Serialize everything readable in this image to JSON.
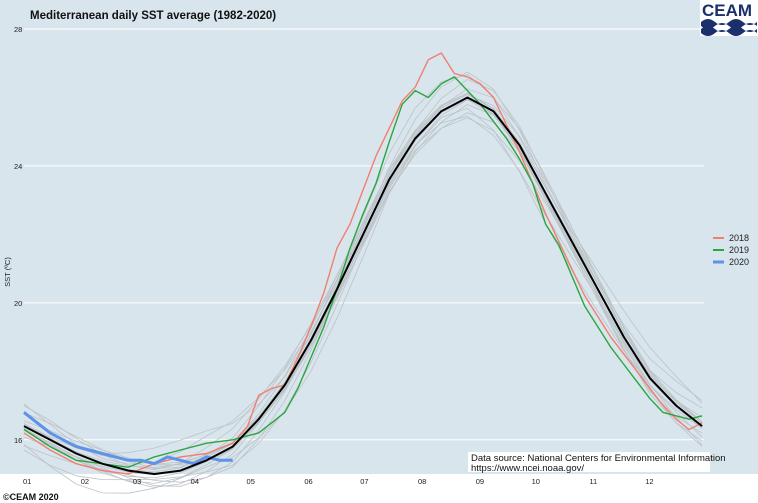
{
  "chart_data": {
    "type": "line",
    "title": "Mediterranean daily SST average (1982-2020)",
    "xlabel": "",
    "ylabel": "SST (ºC)",
    "xlim": [
      0,
      365
    ],
    "ylim": [
      15,
      28
    ],
    "month_ticks": [
      "01",
      "02",
      "03",
      "04",
      "05",
      "06",
      "07",
      "08",
      "09",
      "10",
      "11",
      "12"
    ],
    "y_ticks": [
      16,
      20,
      24,
      28
    ],
    "grid": true,
    "legend_position": "right",
    "climatology_color": "#000000",
    "history_color": "#bcc3c8",
    "series": [
      {
        "name": "2018",
        "color": "#f07f70",
        "x": [
          0,
          14,
          28,
          42,
          56,
          70,
          84,
          98,
          112,
          120,
          126,
          133,
          140,
          147,
          154,
          161,
          168,
          175,
          182,
          189,
          196,
          203,
          210,
          217,
          224,
          231,
          238,
          245,
          252,
          259,
          266,
          273,
          280,
          287,
          294,
          301,
          308,
          315,
          322,
          329,
          336,
          343,
          350,
          357,
          364
        ],
        "values": [
          16.2,
          15.7,
          15.3,
          15.1,
          15.0,
          15.3,
          15.5,
          15.6,
          15.9,
          16.4,
          17.3,
          17.5,
          17.6,
          18.4,
          19.3,
          20.3,
          21.6,
          22.3,
          23.3,
          24.3,
          25.1,
          25.9,
          26.3,
          27.1,
          27.3,
          26.7,
          26.6,
          26.4,
          26.0,
          25.2,
          24.4,
          23.5,
          22.6,
          21.8,
          21.0,
          20.2,
          19.6,
          19.0,
          18.5,
          18.0,
          17.5,
          17.0,
          16.6,
          16.3,
          16.5
        ]
      },
      {
        "name": "2019",
        "color": "#2aa640",
        "x": [
          0,
          14,
          28,
          42,
          56,
          70,
          84,
          98,
          112,
          126,
          140,
          147,
          154,
          161,
          168,
          175,
          182,
          189,
          196,
          203,
          210,
          217,
          224,
          231,
          238,
          245,
          252,
          259,
          266,
          273,
          280,
          287,
          294,
          301,
          308,
          315,
          322,
          329,
          336,
          343,
          350,
          357,
          364
        ],
        "values": [
          16.3,
          15.8,
          15.4,
          15.3,
          15.2,
          15.5,
          15.7,
          15.9,
          16.0,
          16.2,
          16.8,
          17.5,
          18.4,
          19.3,
          20.4,
          21.6,
          22.6,
          23.5,
          24.7,
          25.8,
          26.2,
          26.0,
          26.4,
          26.6,
          26.2,
          25.8,
          25.3,
          24.8,
          24.2,
          23.5,
          22.3,
          21.7,
          20.8,
          19.9,
          19.3,
          18.7,
          18.2,
          17.7,
          17.2,
          16.8,
          16.7,
          16.6,
          16.7
        ]
      },
      {
        "name": "2020",
        "color": "#5d93e8",
        "x": [
          0,
          7,
          14,
          21,
          28,
          35,
          42,
          49,
          56,
          63,
          70,
          77,
          84,
          91,
          98,
          105,
          112
        ],
        "values": [
          16.8,
          16.5,
          16.2,
          16.0,
          15.8,
          15.7,
          15.6,
          15.5,
          15.4,
          15.4,
          15.3,
          15.5,
          15.4,
          15.3,
          15.5,
          15.4,
          15.4
        ]
      }
    ],
    "climatology": {
      "x": [
        0,
        14,
        28,
        42,
        56,
        70,
        84,
        98,
        112,
        126,
        140,
        154,
        168,
        182,
        196,
        210,
        224,
        238,
        252,
        266,
        280,
        294,
        308,
        322,
        336,
        350,
        364
      ],
      "values": [
        16.4,
        16.0,
        15.6,
        15.3,
        15.1,
        15.0,
        15.1,
        15.4,
        15.8,
        16.6,
        17.6,
        18.9,
        20.4,
        22.0,
        23.6,
        24.8,
        25.6,
        26.0,
        25.6,
        24.6,
        23.2,
        21.8,
        20.4,
        19.0,
        17.8,
        17.0,
        16.4
      ]
    }
  },
  "source_line1": "Data source: National Centers for Environmental Information",
  "source_line2": "https://www.ncei.noaa.gov/",
  "credit": "©CEAM 2020",
  "logo_text": "CEAM"
}
